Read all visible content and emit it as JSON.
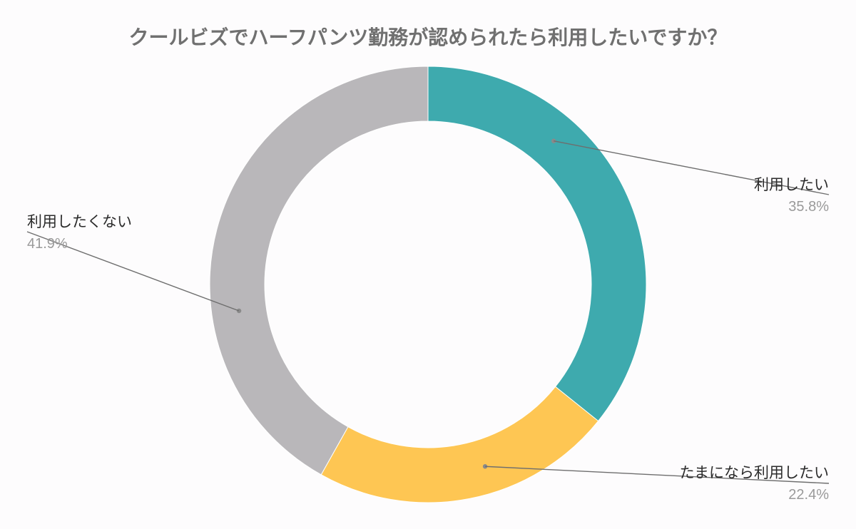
{
  "chart_data": {
    "type": "pie",
    "variant": "donut",
    "title": "クールビズでハーフパンツ勤務が認められたら利用したいですか？",
    "slices": [
      {
        "label": "利用したい",
        "value": 35.8,
        "value_label": "35.8%",
        "color": "#3eaaae"
      },
      {
        "label": "たまになら利用したい",
        "value": 22.4,
        "value_label": "22.4%",
        "color": "#fec653"
      },
      {
        "label": "利用したくない",
        "value": 41.9,
        "value_label": "41.9%",
        "color": "#b9b7ba"
      }
    ],
    "start_angle": "top (12 o'clock)",
    "direction": "clockwise",
    "legend": "none (labels on leader lines)"
  }
}
